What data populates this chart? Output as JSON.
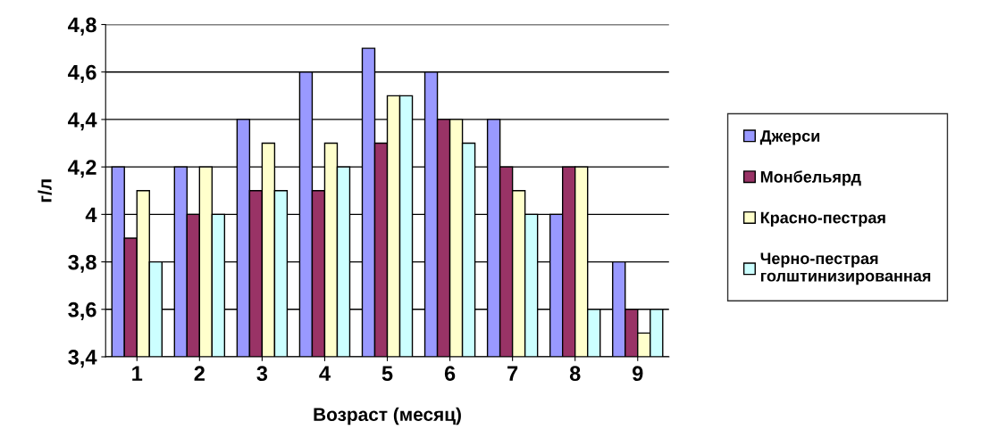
{
  "chart_data": {
    "type": "bar",
    "xlabel": "Возраст (месяц)",
    "ylabel": "г/л",
    "categories": [
      "1",
      "2",
      "3",
      "4",
      "5",
      "6",
      "7",
      "8",
      "9"
    ],
    "series": [
      {
        "name": "Джерси",
        "color": "#9999ff",
        "values": [
          4.2,
          4.2,
          4.4,
          4.6,
          4.7,
          4.6,
          4.4,
          4.0,
          3.8
        ]
      },
      {
        "name": "Монбельярд",
        "color": "#993366",
        "values": [
          3.9,
          4.0,
          4.1,
          4.1,
          4.3,
          4.4,
          4.2,
          4.2,
          3.6
        ]
      },
      {
        "name": "Красно-пестрая",
        "color": "#ffffcc",
        "values": [
          4.1,
          4.2,
          4.3,
          4.3,
          4.5,
          4.4,
          4.1,
          4.2,
          3.5
        ]
      },
      {
        "name": "Черно-пестрая голштинизированная",
        "color": "#ccffff",
        "values": [
          3.8,
          4.0,
          4.1,
          4.2,
          4.5,
          4.3,
          4.0,
          3.6,
          3.6
        ]
      }
    ],
    "ylim": [
      3.4,
      4.8
    ],
    "yticks": [
      {
        "value": 3.4,
        "label": "3,4"
      },
      {
        "value": 3.6,
        "label": "3,6"
      },
      {
        "value": 3.8,
        "label": "3,8"
      },
      4,
      {
        "value": 4.2,
        "label": "4,2"
      },
      {
        "value": 4.4,
        "label": "4,4"
      },
      {
        "value": 4.6,
        "label": "4,6"
      },
      {
        "value": 4.8,
        "label": "4,8"
      }
    ],
    "grid": "y",
    "legend": "right"
  }
}
